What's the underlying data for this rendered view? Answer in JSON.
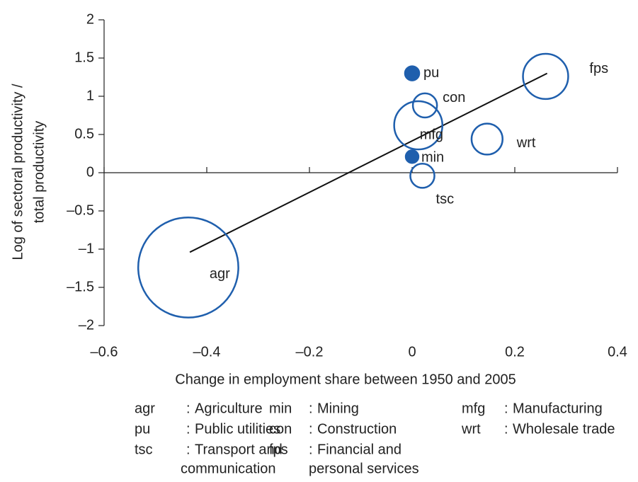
{
  "chart_data": {
    "type": "bubble",
    "xlabel": "Change in employment share between 1950 and 2005",
    "ylabel": [
      "Log of sectoral productivity /",
      "total productivity"
    ],
    "xlim": [
      -0.6,
      0.4
    ],
    "xticks": [
      {
        "value": -0.6,
        "label": "–0.6"
      },
      {
        "value": -0.4,
        "label": "–0.4"
      },
      {
        "value": -0.2,
        "label": "–0.2"
      },
      0,
      0.2,
      0.4
    ],
    "ylim": [
      -2,
      2
    ],
    "yticks": [
      {
        "value": -2,
        "label": "–2"
      },
      {
        "value": -1.5,
        "label": "–1.5"
      },
      {
        "value": -1,
        "label": "–1"
      },
      {
        "value": -0.5,
        "label": "–0.5"
      },
      0,
      0.5,
      1,
      1.5,
      2
    ],
    "color": "#1f5fad",
    "points": {
      "labels": [
        "agr",
        "pu",
        "con",
        "mfg",
        "wrt",
        "min",
        "tsc",
        "fps"
      ],
      "x": [
        -0.436,
        0.0,
        0.025,
        0.012,
        0.146,
        0.0,
        0.02,
        0.26
      ],
      "y": [
        -1.24,
        1.3,
        0.88,
        0.62,
        0.44,
        0.21,
        -0.04,
        1.26
      ],
      "size": [
        50,
        1,
        2.9,
        11.6,
        4.8,
        0.8,
        2.9,
        10.2
      ],
      "filled": [
        false,
        true,
        false,
        false,
        false,
        true,
        false,
        false
      ]
    },
    "trendline": {
      "x": [
        -0.433,
        0.263
      ],
      "y": [
        -1.04,
        1.3
      ]
    },
    "key": {
      "separator": ":",
      "entries": [
        {
          "abbr": "agr",
          "name": [
            "Agriculture"
          ]
        },
        {
          "abbr": "min",
          "name": [
            "Mining"
          ]
        },
        {
          "abbr": "mfg",
          "name": [
            "Manufacturing"
          ]
        },
        {
          "abbr": "pu",
          "name": [
            "Public utilities"
          ]
        },
        {
          "abbr": "con",
          "name": [
            "Construction"
          ]
        },
        {
          "abbr": "wrt",
          "name": [
            "Wholesale trade"
          ]
        },
        {
          "abbr": "tsc",
          "name": [
            "Transport and",
            "communication"
          ]
        },
        {
          "abbr": "fps",
          "name": [
            "Financial and",
            "personal services"
          ]
        }
      ]
    }
  }
}
